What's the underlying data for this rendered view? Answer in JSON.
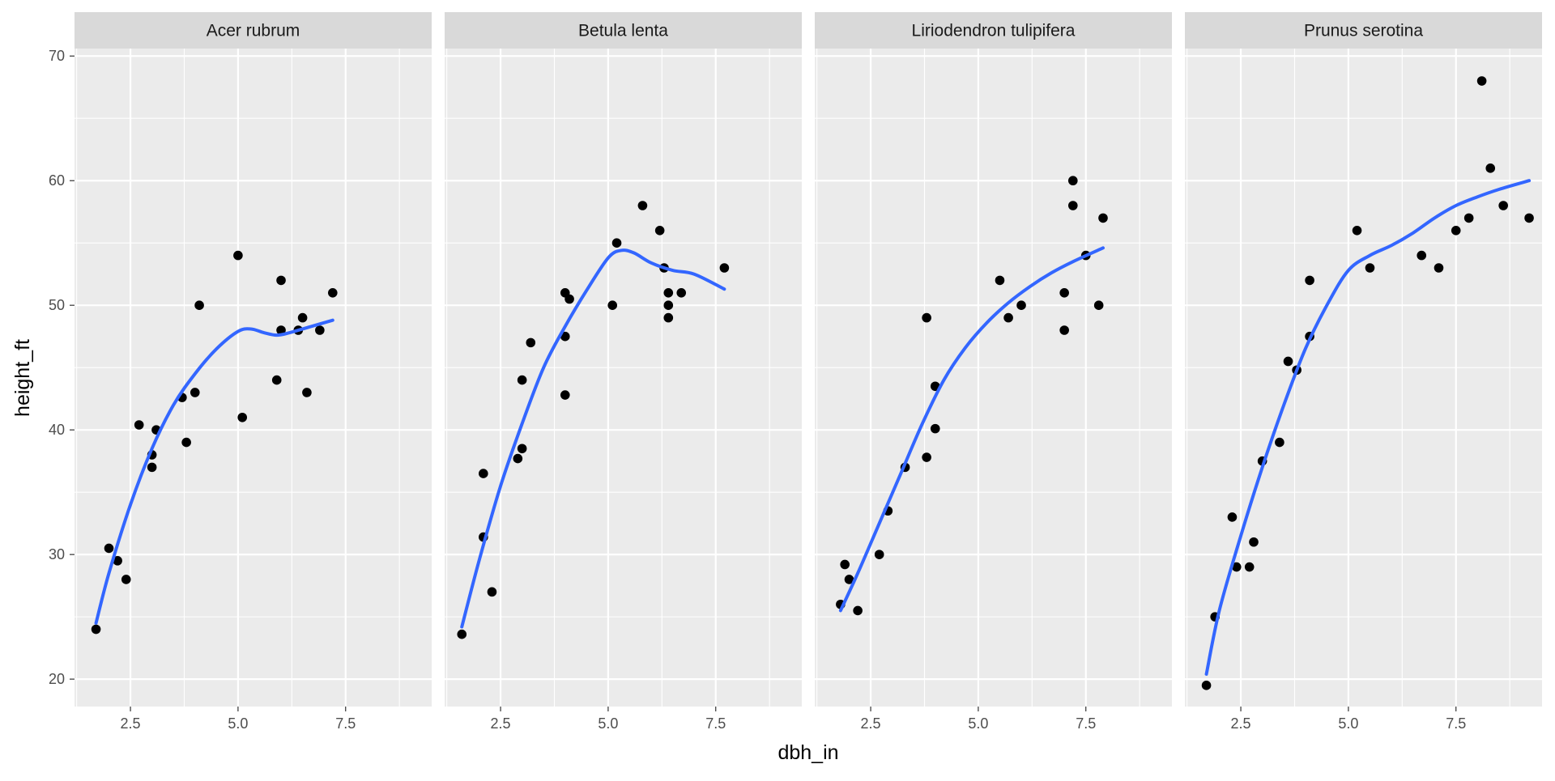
{
  "chart_data": {
    "type": "scatter",
    "xlabel": "dbh_in",
    "ylabel": "height_ft",
    "xlim": [
      1.2,
      9.5
    ],
    "ylim": [
      17.8,
      70.6
    ],
    "x_ticks": [
      2.5,
      5.0,
      7.5
    ],
    "x_tick_labels": [
      "2.5",
      "5.0",
      "7.5"
    ],
    "y_ticks": [
      20,
      30,
      40,
      50,
      60,
      70
    ],
    "y_tick_labels": [
      "20",
      "30",
      "40",
      "50",
      "60",
      "70"
    ],
    "grid": true,
    "colors": {
      "panel_bg": "#ebebeb",
      "strip_bg": "#d9d9d9",
      "grid": "#ffffff",
      "points": "#000000",
      "smooth_line": "#3366ff"
    },
    "panels": [
      {
        "name": "Acer rubrum",
        "points": [
          [
            1.7,
            24
          ],
          [
            2.0,
            30.5
          ],
          [
            2.2,
            29.5
          ],
          [
            2.4,
            28
          ],
          [
            2.7,
            40.4
          ],
          [
            3.0,
            38
          ],
          [
            3.0,
            37
          ],
          [
            3.1,
            40
          ],
          [
            3.7,
            42.6
          ],
          [
            3.8,
            39
          ],
          [
            4.0,
            43
          ],
          [
            4.1,
            50
          ],
          [
            5.0,
            54
          ],
          [
            5.1,
            41
          ],
          [
            5.9,
            44
          ],
          [
            6.0,
            52
          ],
          [
            6.0,
            48
          ],
          [
            6.4,
            48
          ],
          [
            6.5,
            49
          ],
          [
            6.6,
            43
          ],
          [
            6.9,
            48
          ],
          [
            7.2,
            51
          ]
        ],
        "smooth": [
          [
            1.7,
            24.5
          ],
          [
            2.0,
            28.5
          ],
          [
            2.5,
            34
          ],
          [
            3.0,
            38.5
          ],
          [
            3.5,
            42
          ],
          [
            4.0,
            44.5
          ],
          [
            4.5,
            46.5
          ],
          [
            5.0,
            47.9
          ],
          [
            5.3,
            48.1
          ],
          [
            5.6,
            47.8
          ],
          [
            5.9,
            47.6
          ],
          [
            6.2,
            47.8
          ],
          [
            6.6,
            48.2
          ],
          [
            7.2,
            48.8
          ]
        ]
      },
      {
        "name": "Betula lenta",
        "points": [
          [
            1.6,
            23.6
          ],
          [
            2.1,
            31.4
          ],
          [
            2.1,
            36.5
          ],
          [
            2.3,
            27
          ],
          [
            2.9,
            37.7
          ],
          [
            3.0,
            38.5
          ],
          [
            3.0,
            44
          ],
          [
            3.2,
            47
          ],
          [
            4.0,
            51
          ],
          [
            4.0,
            47.5
          ],
          [
            4.0,
            42.8
          ],
          [
            4.1,
            50.5
          ],
          [
            5.1,
            50
          ],
          [
            5.2,
            55
          ],
          [
            5.8,
            58
          ],
          [
            6.2,
            56
          ],
          [
            6.3,
            53
          ],
          [
            6.4,
            51
          ],
          [
            6.4,
            50
          ],
          [
            6.4,
            49
          ],
          [
            6.7,
            51
          ],
          [
            7.7,
            53
          ]
        ],
        "smooth": [
          [
            1.6,
            24.2
          ],
          [
            2.0,
            29.5
          ],
          [
            2.5,
            35.5
          ],
          [
            3.0,
            40.5
          ],
          [
            3.5,
            45
          ],
          [
            4.0,
            48.3
          ],
          [
            4.5,
            51.2
          ],
          [
            5.0,
            53.8
          ],
          [
            5.3,
            54.4
          ],
          [
            5.6,
            54.2
          ],
          [
            6.0,
            53.4
          ],
          [
            6.5,
            52.8
          ],
          [
            7.0,
            52.5
          ],
          [
            7.7,
            51.3
          ]
        ]
      },
      {
        "name": "Liriodendron tulipifera",
        "points": [
          [
            1.8,
            26
          ],
          [
            1.9,
            29.2
          ],
          [
            2.0,
            28
          ],
          [
            2.2,
            25.5
          ],
          [
            2.7,
            30
          ],
          [
            2.9,
            33.5
          ],
          [
            3.3,
            37
          ],
          [
            3.8,
            37.8
          ],
          [
            3.8,
            49
          ],
          [
            4.0,
            40.1
          ],
          [
            4.0,
            43.5
          ],
          [
            5.5,
            52
          ],
          [
            5.7,
            49
          ],
          [
            6.0,
            50
          ],
          [
            7.0,
            51
          ],
          [
            7.0,
            48
          ],
          [
            7.2,
            60
          ],
          [
            7.2,
            58
          ],
          [
            7.5,
            54
          ],
          [
            7.8,
            50
          ],
          [
            7.9,
            57
          ]
        ],
        "smooth": [
          [
            1.8,
            25.5
          ],
          [
            2.2,
            28.5
          ],
          [
            2.7,
            32.5
          ],
          [
            3.2,
            36.5
          ],
          [
            3.7,
            40.5
          ],
          [
            4.2,
            44
          ],
          [
            4.7,
            46.6
          ],
          [
            5.2,
            48.6
          ],
          [
            5.7,
            50.2
          ],
          [
            6.2,
            51.5
          ],
          [
            6.7,
            52.6
          ],
          [
            7.2,
            53.5
          ],
          [
            7.9,
            54.6
          ]
        ]
      },
      {
        "name": "Prunus serotina",
        "points": [
          [
            1.7,
            19.5
          ],
          [
            1.9,
            25
          ],
          [
            2.3,
            33
          ],
          [
            2.4,
            29
          ],
          [
            2.7,
            29
          ],
          [
            2.8,
            31
          ],
          [
            3.0,
            37.5
          ],
          [
            3.4,
            39
          ],
          [
            3.6,
            45.5
          ],
          [
            3.8,
            44.8
          ],
          [
            4.1,
            52
          ],
          [
            4.1,
            47.5
          ],
          [
            5.2,
            56
          ],
          [
            5.5,
            53
          ],
          [
            6.7,
            54
          ],
          [
            7.1,
            53
          ],
          [
            7.5,
            56
          ],
          [
            7.8,
            57
          ],
          [
            8.1,
            68
          ],
          [
            8.3,
            61
          ],
          [
            8.6,
            58
          ],
          [
            9.2,
            57
          ]
        ],
        "smooth": [
          [
            1.7,
            20.4
          ],
          [
            2.0,
            25.5
          ],
          [
            2.5,
            31.5
          ],
          [
            3.0,
            37
          ],
          [
            3.5,
            42
          ],
          [
            4.0,
            46.5
          ],
          [
            4.5,
            50
          ],
          [
            5.0,
            52.8
          ],
          [
            5.5,
            54
          ],
          [
            6.0,
            54.8
          ],
          [
            6.5,
            55.8
          ],
          [
            7.0,
            57
          ],
          [
            7.5,
            58
          ],
          [
            8.0,
            58.7
          ],
          [
            8.5,
            59.3
          ],
          [
            9.2,
            60
          ]
        ]
      }
    ]
  }
}
